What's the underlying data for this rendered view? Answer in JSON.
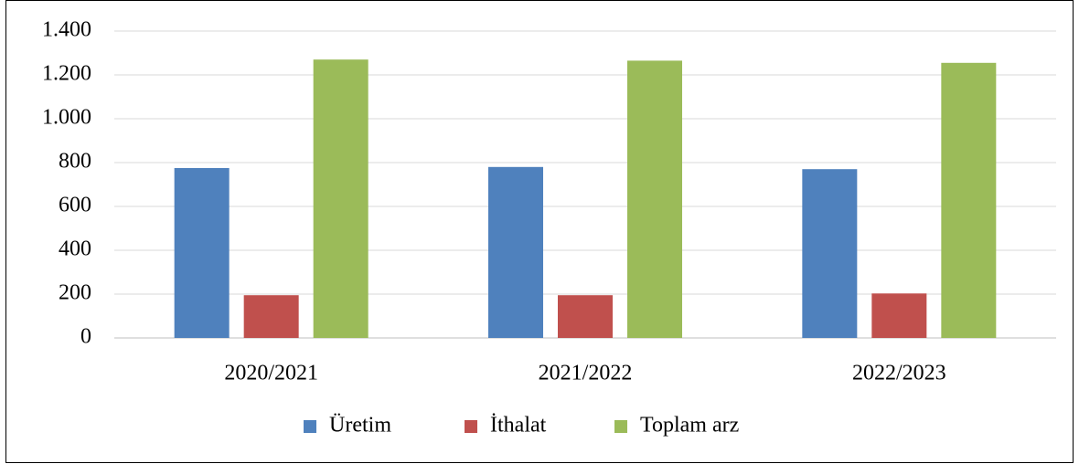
{
  "chart_data": {
    "type": "bar",
    "categories": [
      "2020/2021",
      "2021/2022",
      "2022/2023"
    ],
    "series": [
      {
        "name": "Üretim",
        "color": "#4f81bd",
        "values": [
          775,
          780,
          770
        ]
      },
      {
        "name": "İthalat",
        "color": "#c0504d",
        "values": [
          195,
          195,
          203
        ]
      },
      {
        "name": "Toplam arz",
        "color": "#9bbb59",
        "values": [
          1270,
          1265,
          1255
        ]
      }
    ],
    "ylim": [
      0,
      1400
    ],
    "yticks": [
      0,
      200,
      400,
      600,
      800,
      {
        "value": 1000,
        "label": "1.000"
      },
      {
        "value": 1200,
        "label": "1.200"
      },
      {
        "value": 1400,
        "label": "1.400"
      }
    ],
    "grid": true,
    "legend": "bottom"
  }
}
